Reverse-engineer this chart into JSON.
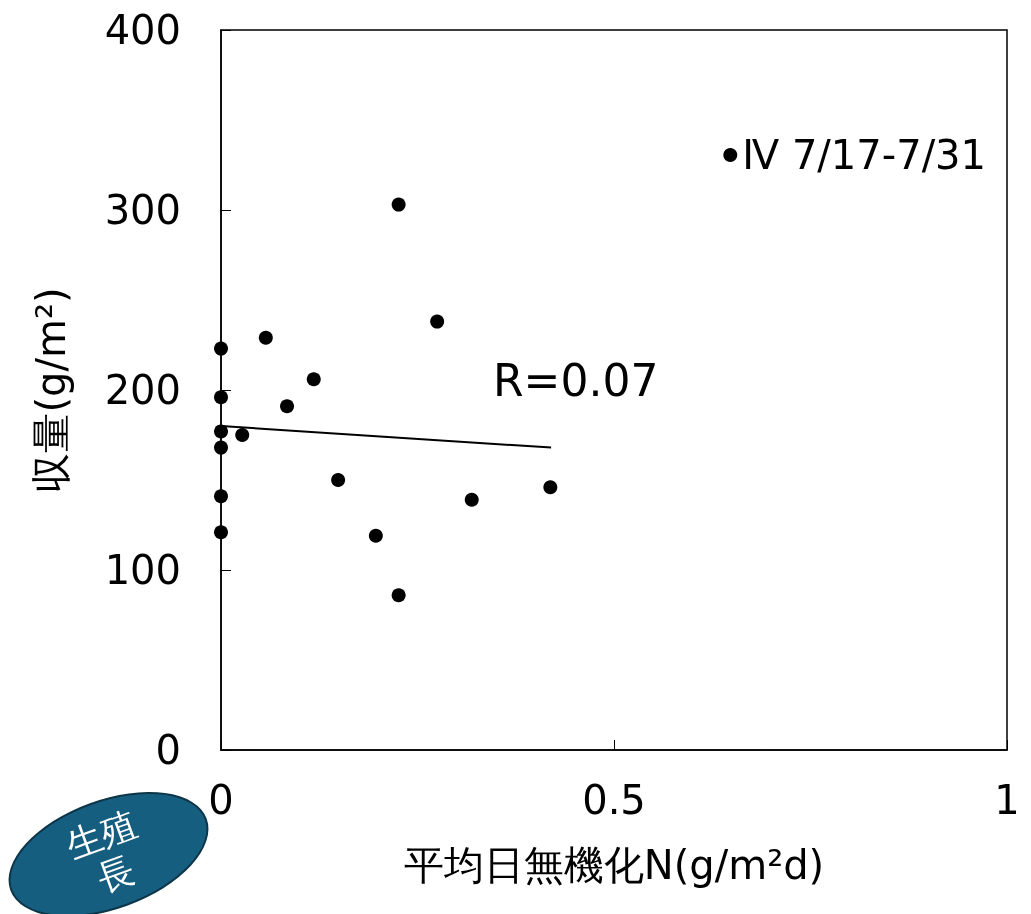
{
  "chart_data": {
    "type": "scatter",
    "xlabel": "平均日無機化N(g/m²d)",
    "ylabel": "収量(g/m²)",
    "xlim": [
      0,
      1
    ],
    "xticks": [
      0,
      0.5,
      1
    ],
    "ylim": [
      0,
      400
    ],
    "yticks": [
      0,
      100,
      200,
      300,
      400
    ],
    "grid": false,
    "legend": "top right",
    "marker": "circle",
    "annotations": [
      "R=0.07",
      "生殖",
      "長"
    ],
    "series": [
      {
        "name": "Ⅳ 7/17-7/31",
        "color": "#000000",
        "x": [
          0,
          0,
          0,
          0,
          0,
          0,
          0.027,
          0.057,
          0.084,
          0.118,
          0.149,
          0.197,
          0.226,
          0.226,
          0.275,
          0.319,
          0.419
        ],
        "values": [
          223,
          196,
          177,
          168,
          141,
          121,
          175,
          229,
          191,
          206,
          150,
          119,
          303,
          86,
          238,
          139,
          146
        ]
      },
      {
        "type": "line",
        "color": "#000000",
        "marker": "none",
        "x": [
          0,
          0.42
        ],
        "values": [
          180,
          168
        ]
      }
    ]
  }
}
